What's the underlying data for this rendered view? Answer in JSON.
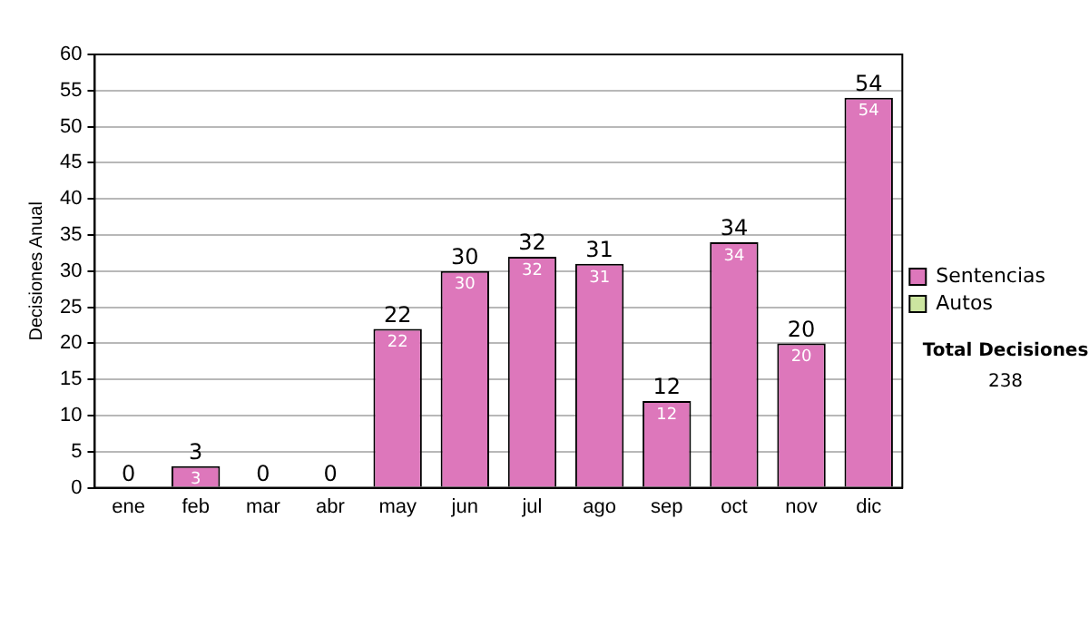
{
  "chart_data": {
    "type": "bar",
    "ylabel": "Decisiones Anual",
    "categories": [
      "ene",
      "feb",
      "mar",
      "abr",
      "may",
      "jun",
      "jul",
      "ago",
      "sep",
      "oct",
      "nov",
      "dic"
    ],
    "series": [
      {
        "name": "Sentencias",
        "color": "#dd77bb",
        "values": [
          0,
          3,
          0,
          0,
          22,
          30,
          32,
          31,
          12,
          34,
          20,
          54
        ],
        "value_labels": [
          null,
          "3",
          null,
          null,
          "22",
          "30",
          "32",
          "31",
          "12",
          "34",
          "20",
          "54"
        ]
      },
      {
        "name": "Autos",
        "color": "#cce5a0",
        "values": [
          0,
          0,
          0,
          0,
          0,
          0,
          0,
          0,
          0,
          0,
          0,
          0
        ]
      }
    ],
    "stacked": true,
    "totals": [
      "0",
      "3",
      "0",
      "0",
      "22",
      "30",
      "32",
      "31",
      "12",
      "34",
      "20",
      "54"
    ],
    "ylim": [
      0,
      60
    ],
    "yticks": [
      0,
      5,
      10,
      15,
      20,
      25,
      30,
      35,
      40,
      45,
      50,
      55,
      60
    ],
    "grid": "y",
    "legend": "right",
    "annotations": [
      "Total Decisiones",
      "238"
    ]
  }
}
